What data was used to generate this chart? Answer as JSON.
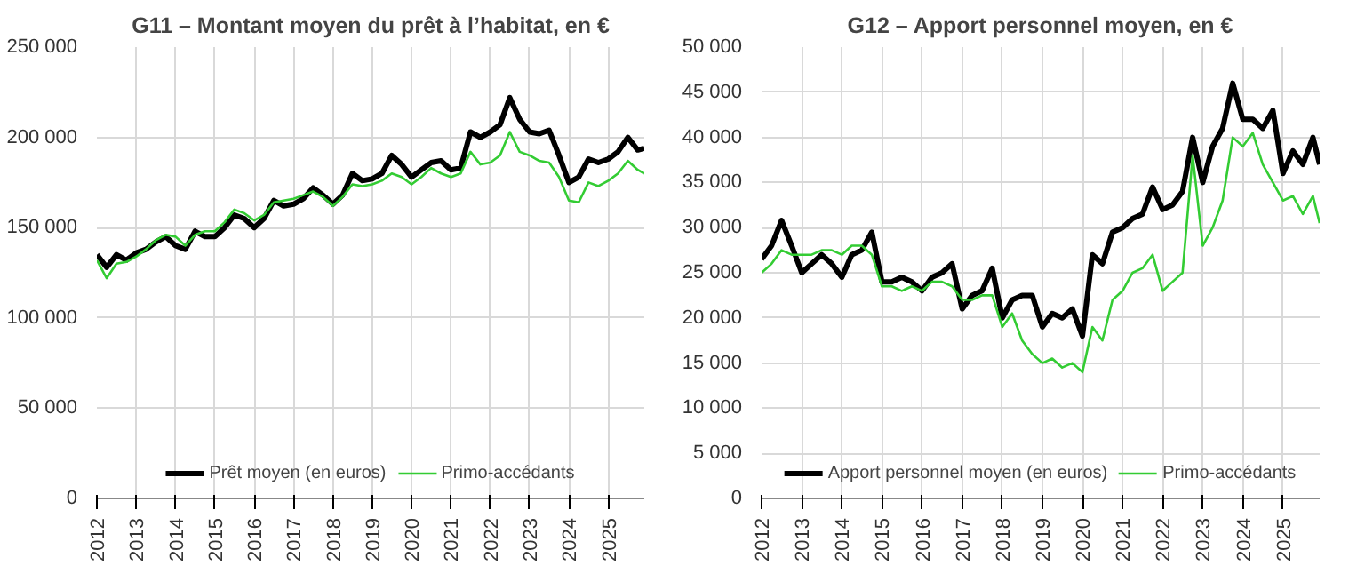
{
  "chart_data": [
    {
      "type": "line",
      "title": "G11 – Montant moyen du prêt à l’habitat, en €",
      "x": [
        "2012-01",
        "2012-04",
        "2012-07",
        "2012-10",
        "2013-01",
        "2013-04",
        "2013-07",
        "2013-10",
        "2014-01",
        "2014-04",
        "2014-07",
        "2014-10",
        "2015-01",
        "2015-04",
        "2015-07",
        "2015-10",
        "2016-01",
        "2016-04",
        "2016-07",
        "2016-10",
        "2017-01",
        "2017-04",
        "2017-07",
        "2017-10",
        "2018-01",
        "2018-04",
        "2018-07",
        "2018-10",
        "2019-01",
        "2019-04",
        "2019-07",
        "2019-10",
        "2020-01",
        "2020-04",
        "2020-07",
        "2020-10",
        "2021-01",
        "2021-04",
        "2021-07",
        "2021-10",
        "2022-01",
        "2022-04",
        "2022-07",
        "2022-10",
        "2023-01",
        "2023-04",
        "2023-07",
        "2023-10",
        "2024-01",
        "2024-04",
        "2024-07",
        "2024-10",
        "2025-01",
        "2025-04",
        "2025-07",
        "2025-10",
        "2025-12"
      ],
      "series": [
        {
          "name": "Prêt moyen (en euros)",
          "color": "#000000",
          "values": [
            135000,
            128000,
            135000,
            132000,
            136000,
            138000,
            142000,
            145000,
            140000,
            138000,
            148000,
            145000,
            145000,
            150000,
            157000,
            155000,
            150000,
            155000,
            165000,
            162000,
            163000,
            166000,
            172000,
            168000,
            163000,
            168000,
            180000,
            176000,
            177000,
            180000,
            190000,
            185000,
            178000,
            182000,
            186000,
            187000,
            182000,
            183000,
            203000,
            200000,
            203000,
            207000,
            222000,
            210000,
            203000,
            202000,
            204000,
            190000,
            175000,
            178000,
            188000,
            186000,
            188000,
            192000,
            200000,
            193000,
            194000
          ]
        },
        {
          "name": "Primo-accédants",
          "color": "#33cc33",
          "values": [
            132000,
            122000,
            130000,
            131000,
            134000,
            138000,
            143000,
            146000,
            145000,
            140000,
            146000,
            148000,
            148000,
            153000,
            160000,
            158000,
            154000,
            157000,
            164000,
            165000,
            166000,
            168000,
            170000,
            167000,
            162000,
            167000,
            174000,
            173000,
            174000,
            176000,
            180000,
            178000,
            174000,
            178000,
            183000,
            180000,
            178000,
            180000,
            192000,
            185000,
            186000,
            190000,
            203000,
            192000,
            190000,
            187000,
            186000,
            178000,
            165000,
            164000,
            175000,
            173000,
            176000,
            180000,
            187000,
            182000,
            180000
          ]
        }
      ],
      "xlim": [
        "2012-01",
        "2025-12"
      ],
      "xticks": [
        "2012",
        "2013",
        "2014",
        "2015",
        "2016",
        "2017",
        "2018",
        "2019",
        "2020",
        "2021",
        "2022",
        "2023",
        "2024",
        "2025"
      ],
      "ylim": [
        0,
        250000
      ],
      "yticks": [
        0,
        {
          "value": 50000,
          "label": "50 000"
        },
        {
          "value": 100000,
          "label": "100 000"
        },
        {
          "value": 150000,
          "label": "150 000"
        },
        {
          "value": 200000,
          "label": "200 000"
        },
        {
          "value": 250000,
          "label": "250 000"
        }
      ],
      "grid": true,
      "legend": "bottom"
    },
    {
      "type": "line",
      "title": "G12 – Apport personnel moyen, en €",
      "x": [
        "2012-01",
        "2012-04",
        "2012-07",
        "2012-10",
        "2013-01",
        "2013-04",
        "2013-07",
        "2013-10",
        "2014-01",
        "2014-04",
        "2014-07",
        "2014-10",
        "2015-01",
        "2015-04",
        "2015-07",
        "2015-10",
        "2016-01",
        "2016-04",
        "2016-07",
        "2016-10",
        "2017-01",
        "2017-04",
        "2017-07",
        "2017-10",
        "2018-01",
        "2018-04",
        "2018-07",
        "2018-10",
        "2019-01",
        "2019-04",
        "2019-07",
        "2019-10",
        "2020-01",
        "2020-04",
        "2020-07",
        "2020-10",
        "2021-01",
        "2021-04",
        "2021-07",
        "2021-10",
        "2022-01",
        "2022-04",
        "2022-07",
        "2022-10",
        "2023-01",
        "2023-04",
        "2023-07",
        "2023-10",
        "2024-01",
        "2024-04",
        "2024-07",
        "2024-10",
        "2025-01",
        "2025-04",
        "2025-07",
        "2025-10",
        "2025-12"
      ],
      "series": [
        {
          "name": "Apport personnel moyen (en euros)",
          "color": "#000000",
          "values": [
            26500,
            28000,
            30800,
            28000,
            25000,
            26000,
            27000,
            26000,
            24500,
            27000,
            27500,
            29500,
            24000,
            24000,
            24500,
            24000,
            23000,
            24500,
            25000,
            26000,
            21000,
            22500,
            23000,
            25500,
            20000,
            22000,
            22500,
            22500,
            19000,
            20500,
            20000,
            21000,
            18000,
            27000,
            26000,
            29500,
            30000,
            31000,
            31500,
            34500,
            32000,
            32500,
            34000,
            40000,
            35000,
            39000,
            41000,
            46000,
            42000,
            42000,
            41000,
            43000,
            36000,
            38500,
            37000,
            40000,
            37000
          ]
        },
        {
          "name": "Primo-accédants",
          "color": "#33cc33",
          "values": [
            25000,
            26000,
            27500,
            27000,
            27000,
            27000,
            27500,
            27500,
            27000,
            28000,
            28000,
            27000,
            23500,
            23500,
            23000,
            23500,
            23000,
            24000,
            24000,
            23500,
            22000,
            22000,
            22500,
            22500,
            19000,
            20500,
            17500,
            16000,
            15000,
            15500,
            14500,
            15000,
            14000,
            19000,
            17500,
            22000,
            23000,
            25000,
            25500,
            27000,
            23000,
            24000,
            25000,
            38000,
            28000,
            30000,
            33000,
            40000,
            39000,
            40500,
            37000,
            35000,
            33000,
            33500,
            31500,
            33500,
            30500
          ]
        }
      ],
      "xlim": [
        "2012-01",
        "2025-12"
      ],
      "xticks": [
        "2012",
        "2013",
        "2014",
        "2015",
        "2016",
        "2017",
        "2018",
        "2019",
        "2020",
        "2021",
        "2022",
        "2023",
        "2024",
        "2025"
      ],
      "ylim": [
        0,
        50000
      ],
      "yticks": [
        0,
        {
          "value": 5000,
          "label": "5 000"
        },
        {
          "value": 10000,
          "label": "10 000"
        },
        {
          "value": 15000,
          "label": "15 000"
        },
        {
          "value": 20000,
          "label": "20 000"
        },
        {
          "value": 25000,
          "label": "25 000"
        },
        {
          "value": 30000,
          "label": "30 000"
        },
        {
          "value": 35000,
          "label": "35 000"
        },
        {
          "value": 40000,
          "label": "40 000"
        },
        {
          "value": 45000,
          "label": "45 000"
        },
        {
          "value": 50000,
          "label": "50 000"
        }
      ],
      "grid": true,
      "legend": "bottom"
    }
  ]
}
